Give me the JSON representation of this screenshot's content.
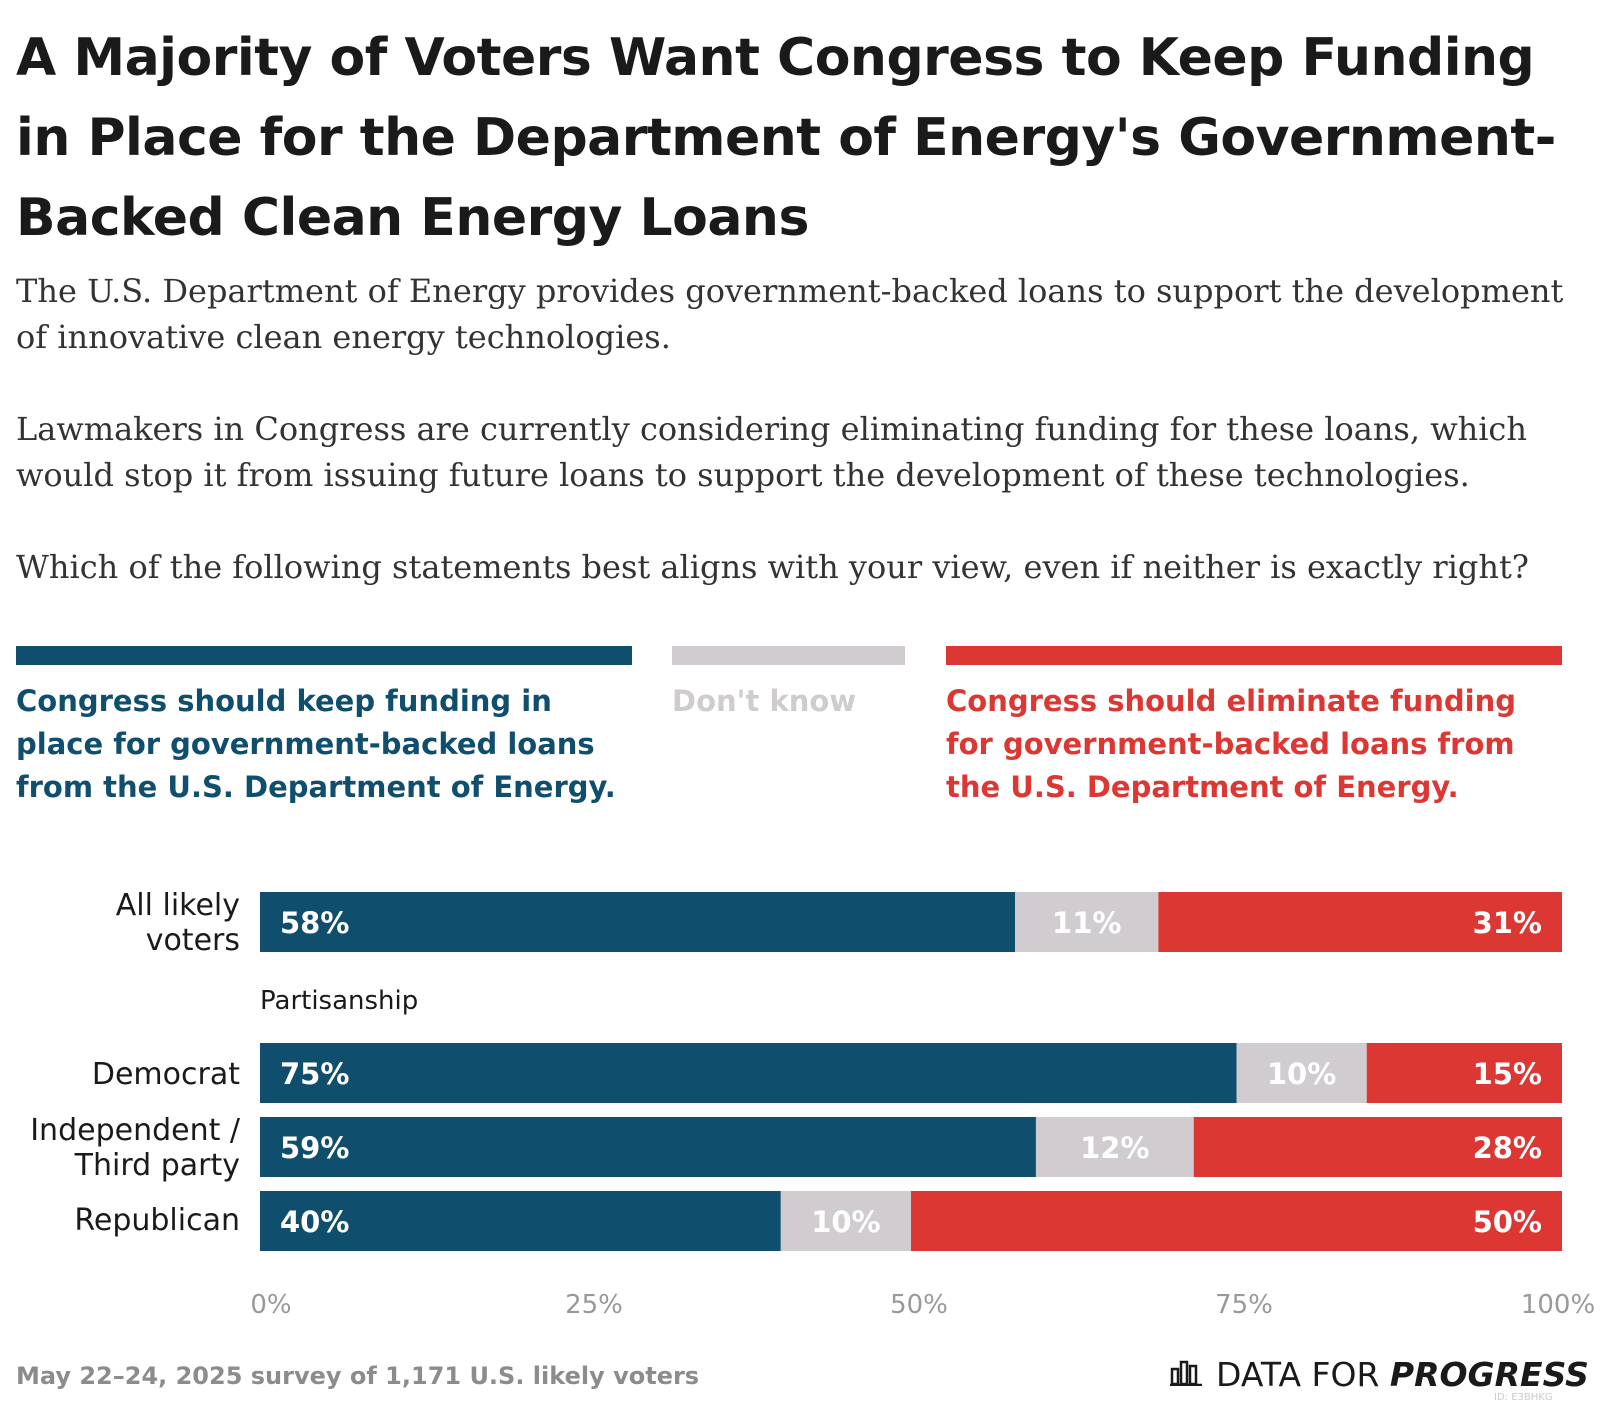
{
  "title": "A Majority of Voters Want Congress to Keep Funding in Place for the Department of Energy's Government-Backed Clean Energy Loans",
  "intro": {
    "p1": "The U.S. Department of Energy provides government-backed loans to support the development of innovative clean energy technologies.",
    "p2": "Lawmakers in Congress are currently considering eliminating funding for these loans, which would stop it from issuing future loans to support the development of these technologies.",
    "p3": "Which of the following statements best aligns with your view, even if neither is exactly right?"
  },
  "footnote": "May 22–24, 2025 survey of 1,171 U.S. likely voters",
  "brand": {
    "name_light": "DATA FOR ",
    "name_bold": "PROGRESS",
    "id": "ID: E3BHKG"
  },
  "colors": {
    "keep": "#0f4e6d",
    "dontknow": "#d0ccd0",
    "eliminate": "#dc3732"
  },
  "chart_data": {
    "type": "bar",
    "orientation": "horizontal",
    "stacked": true,
    "title": "A Majority of Voters Want Congress to Keep Funding in Place for the Department of Energy's Government-Backed Clean Energy Loans",
    "categories": [
      "All likely voters",
      "Democrat",
      "Independent / Third party",
      "Republican"
    ],
    "group_label": "Partisanship",
    "series": [
      {
        "name": "Congress should keep funding in place for government-backed loans from the U.S. Department of Energy.",
        "values": [
          58,
          75,
          59,
          40
        ],
        "color": "#0f4e6d"
      },
      {
        "name": "Don't know",
        "values": [
          11,
          10,
          12,
          10
        ],
        "color": "#d0ccd0"
      },
      {
        "name": "Congress should eliminate funding for government-backed loans from the U.S. Department of Energy.",
        "values": [
          31,
          15,
          28,
          50
        ],
        "color": "#dc3732"
      }
    ],
    "value_labels": [
      [
        "58%",
        "11%",
        "31%"
      ],
      [
        "75%",
        "10%",
        "15%"
      ],
      [
        "59%",
        "12%",
        "28%"
      ],
      [
        "40%",
        "10%",
        "50%"
      ]
    ],
    "xlim": [
      0,
      100
    ],
    "xticks": [
      "0%",
      "25%",
      "50%",
      "75%",
      "100%"
    ],
    "legend_position": "top",
    "grid": false
  }
}
